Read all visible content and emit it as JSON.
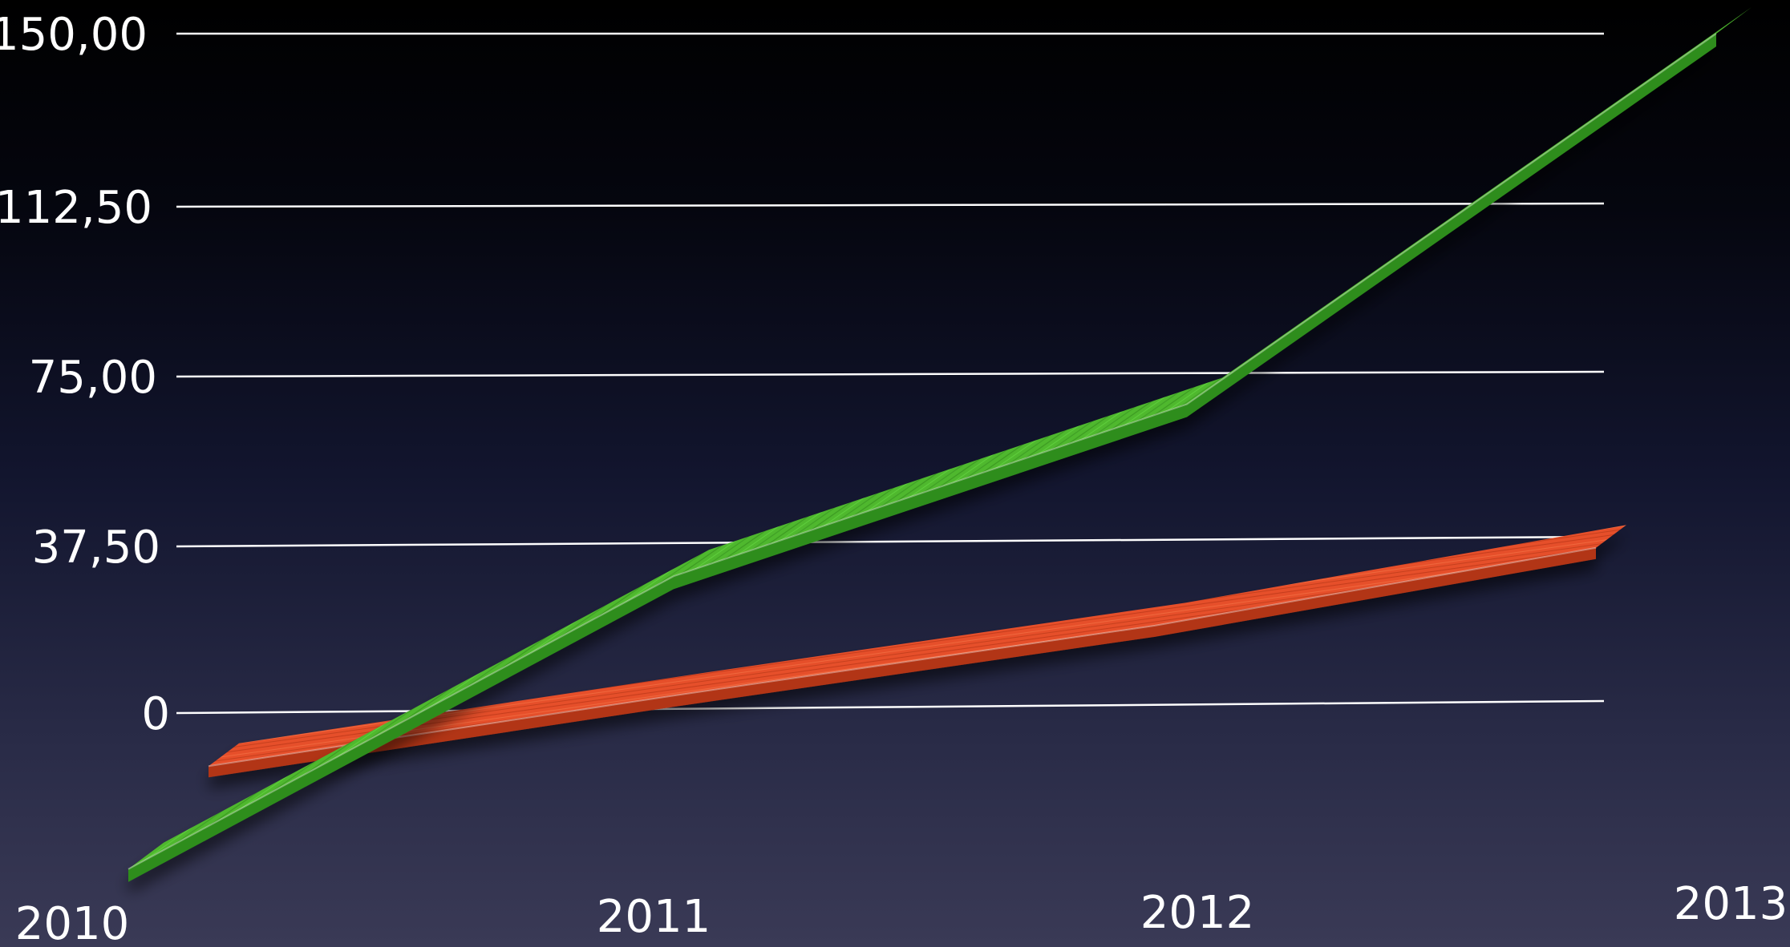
{
  "chart_data": {
    "type": "line",
    "categories": [
      "2010",
      "2011",
      "2012",
      "2013"
    ],
    "y_ticks": [
      "0",
      "37,50",
      "75,00",
      "112,50",
      "150,00"
    ],
    "y_tick_values": [
      0,
      37.5,
      75,
      112.5,
      150
    ],
    "ylim": [
      0,
      150
    ],
    "grid": true,
    "legend": "none",
    "title": "",
    "xlabel": "",
    "ylabel": "",
    "series": [
      {
        "values": [
          -12,
          3,
          18,
          35
        ],
        "color": "#e8532e"
      },
      {
        "values": [
          -35,
          30,
          68,
          150
        ],
        "color": "#5cc63a"
      }
    ]
  }
}
